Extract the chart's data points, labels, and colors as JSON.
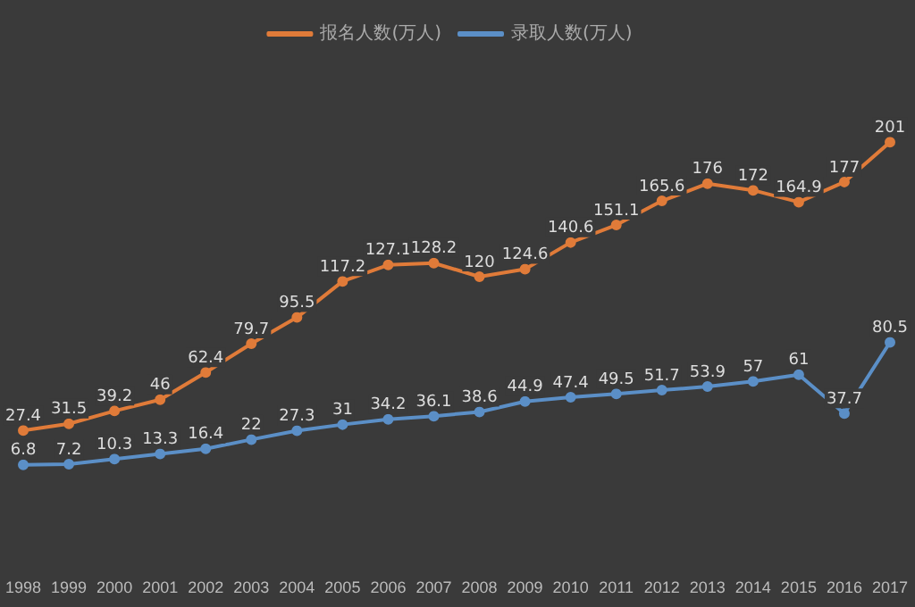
{
  "chart_data": {
    "type": "line",
    "categories": [
      "1998",
      "1999",
      "2000",
      "2001",
      "2002",
      "2003",
      "2004",
      "2005",
      "2006",
      "2007",
      "2008",
      "2009",
      "2010",
      "2011",
      "2012",
      "2013",
      "2014",
      "2015",
      "2016",
      "2017"
    ],
    "series": [
      {
        "name": "报名人数(万人)",
        "color": "#e07b39",
        "values": [
          27.4,
          31.5,
          39.2,
          46,
          62.4,
          79.7,
          95.5,
          117.2,
          127.1,
          128.2,
          120,
          124.6,
          140.6,
          151.1,
          165.6,
          176,
          172,
          164.9,
          177,
          201
        ]
      },
      {
        "name": "录取人数(万人)",
        "color": "#5b8fc7",
        "values": [
          6.8,
          7.2,
          10.3,
          13.3,
          16.4,
          22,
          27.3,
          31,
          34.2,
          36.1,
          38.6,
          44.9,
          47.4,
          49.5,
          51.7,
          53.9,
          57,
          61,
          37.7,
          80.5
        ]
      }
    ],
    "data_labels": true,
    "legend": "top",
    "marker": "circle",
    "line_style": "solid",
    "grid": false,
    "tick_labels": "x"
  }
}
